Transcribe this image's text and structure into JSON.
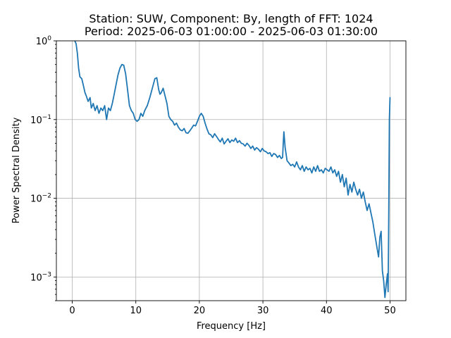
{
  "chart_data": {
    "type": "line",
    "title": "Station: SUW, Component: By, length of FFT: 1024",
    "subtitle": "Period: 2025-06-03 01:00:00 - 2025-06-03 01:30:00",
    "xlabel": "Frequency [Hz]",
    "ylabel": "Power Spectral Density",
    "xlim": [
      -2.5,
      52.5
    ],
    "ylim": [
      0.0005,
      1
    ],
    "yscale": "log",
    "grid": true,
    "xticks": [
      0,
      10,
      20,
      30,
      40,
      50
    ],
    "xtick_labels": [
      "0",
      "10",
      "20",
      "30",
      "40",
      "50"
    ],
    "yticks": [
      0.001,
      0.01,
      0.1,
      1
    ],
    "ytick_labels": [
      {
        "base": "10",
        "exp": "−3"
      },
      {
        "base": "10",
        "exp": "−2"
      },
      {
        "base": "10",
        "exp": "−1"
      },
      {
        "base": "10",
        "exp": "0"
      }
    ],
    "colors": {
      "series": "#1f77b4"
    },
    "series": [
      {
        "x": [
          0.4,
          0.6,
          0.8,
          1.0,
          1.2,
          1.5,
          1.8,
          2.0,
          2.2,
          2.5,
          2.8,
          3.0,
          3.3,
          3.6,
          3.9,
          4.2,
          4.5,
          4.8,
          5.1,
          5.4,
          5.7,
          6.0,
          6.3,
          6.6,
          6.9,
          7.2,
          7.5,
          7.8,
          8.1,
          8.4,
          8.7,
          9.0,
          9.3,
          9.6,
          9.9,
          10.2,
          10.5,
          10.8,
          11.1,
          11.4,
          11.8,
          12.2,
          12.6,
          13.0,
          13.3,
          13.6,
          13.8,
          14.0,
          14.3,
          14.6,
          14.9,
          15.2,
          15.5,
          15.8,
          16.1,
          16.4,
          16.7,
          17.0,
          17.3,
          17.6,
          17.9,
          18.2,
          18.5,
          18.8,
          19.1,
          19.4,
          19.7,
          20.0,
          20.3,
          20.6,
          20.9,
          21.2,
          21.5,
          21.8,
          22.1,
          22.4,
          22.7,
          23.0,
          23.3,
          23.6,
          23.9,
          24.2,
          24.5,
          24.8,
          25.1,
          25.4,
          25.7,
          26.0,
          26.3,
          26.6,
          26.9,
          27.2,
          27.5,
          27.8,
          28.1,
          28.4,
          28.7,
          29.0,
          29.3,
          29.6,
          29.9,
          30.2,
          30.5,
          30.8,
          31.1,
          31.4,
          31.7,
          32.0,
          32.3,
          32.6,
          32.9,
          33.1,
          33.2,
          33.3,
          33.5,
          33.8,
          34.1,
          34.4,
          34.7,
          35.0,
          35.3,
          35.6,
          35.9,
          36.2,
          36.5,
          36.8,
          37.1,
          37.4,
          37.7,
          38.0,
          38.3,
          38.6,
          38.9,
          39.2,
          39.5,
          39.8,
          40.1,
          40.4,
          40.7,
          41.0,
          41.3,
          41.6,
          41.9,
          42.2,
          42.5,
          42.8,
          43.1,
          43.4,
          43.7,
          44.0,
          44.3,
          44.6,
          44.9,
          45.2,
          45.5,
          45.8,
          46.1,
          46.4,
          46.7,
          47.0,
          47.3,
          47.6,
          47.9,
          48.2,
          48.4,
          48.6,
          48.8,
          49.0,
          49.2,
          49.4,
          49.6,
          49.7,
          49.8,
          49.9,
          50.0
        ],
        "values": [
          1.0,
          0.92,
          0.7,
          0.45,
          0.35,
          0.33,
          0.26,
          0.22,
          0.2,
          0.17,
          0.19,
          0.14,
          0.16,
          0.13,
          0.15,
          0.12,
          0.14,
          0.13,
          0.15,
          0.1,
          0.14,
          0.13,
          0.16,
          0.21,
          0.28,
          0.37,
          0.45,
          0.5,
          0.49,
          0.38,
          0.24,
          0.15,
          0.13,
          0.12,
          0.1,
          0.095,
          0.1,
          0.12,
          0.11,
          0.13,
          0.15,
          0.19,
          0.25,
          0.33,
          0.34,
          0.24,
          0.21,
          0.22,
          0.25,
          0.2,
          0.16,
          0.11,
          0.1,
          0.095,
          0.085,
          0.09,
          0.08,
          0.074,
          0.072,
          0.077,
          0.068,
          0.067,
          0.072,
          0.078,
          0.085,
          0.083,
          0.095,
          0.11,
          0.12,
          0.11,
          0.09,
          0.076,
          0.066,
          0.064,
          0.059,
          0.066,
          0.061,
          0.056,
          0.052,
          0.058,
          0.049,
          0.053,
          0.057,
          0.051,
          0.055,
          0.053,
          0.058,
          0.051,
          0.054,
          0.05,
          0.049,
          0.046,
          0.05,
          0.047,
          0.043,
          0.046,
          0.041,
          0.044,
          0.042,
          0.039,
          0.043,
          0.04,
          0.039,
          0.037,
          0.038,
          0.034,
          0.037,
          0.036,
          0.033,
          0.035,
          0.032,
          0.033,
          0.05,
          0.07,
          0.044,
          0.03,
          0.028,
          0.026,
          0.027,
          0.025,
          0.029,
          0.025,
          0.023,
          0.026,
          0.022,
          0.025,
          0.023,
          0.024,
          0.021,
          0.025,
          0.022,
          0.026,
          0.022,
          0.023,
          0.021,
          0.024,
          0.023,
          0.022,
          0.025,
          0.021,
          0.023,
          0.019,
          0.022,
          0.016,
          0.02,
          0.014,
          0.018,
          0.011,
          0.015,
          0.012,
          0.016,
          0.013,
          0.011,
          0.013,
          0.01,
          0.012,
          0.009,
          0.007,
          0.0085,
          0.0065,
          0.005,
          0.0035,
          0.0025,
          0.0018,
          0.0032,
          0.0038,
          0.0012,
          0.0009,
          0.00055,
          0.0008,
          0.0011,
          0.00065,
          0.006,
          0.1,
          0.19
        ]
      }
    ]
  }
}
